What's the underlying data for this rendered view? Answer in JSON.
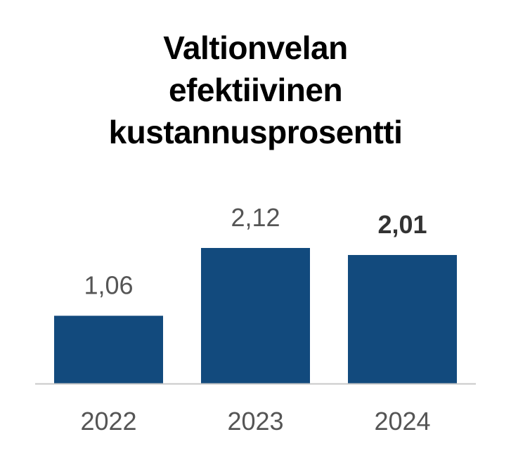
{
  "chart_data": {
    "type": "bar",
    "title_lines": [
      "Valtionvelan",
      "efektiivinen",
      "kustannusprosentti"
    ],
    "categories": [
      "2022",
      "2023",
      "2024"
    ],
    "values": [
      1.06,
      2.12,
      2.01
    ],
    "value_labels": [
      "1,06",
      "2,12",
      "2,01"
    ],
    "highlight_index": 2,
    "xlabel": "",
    "ylabel": "",
    "ylim": [
      0,
      2.12
    ],
    "grid": false,
    "legend": "none",
    "colors": {
      "bar": "#124a7d",
      "axis": "#c8c8c8",
      "label": "#555555",
      "highlight_label": "#333333",
      "title": "#000000"
    }
  }
}
